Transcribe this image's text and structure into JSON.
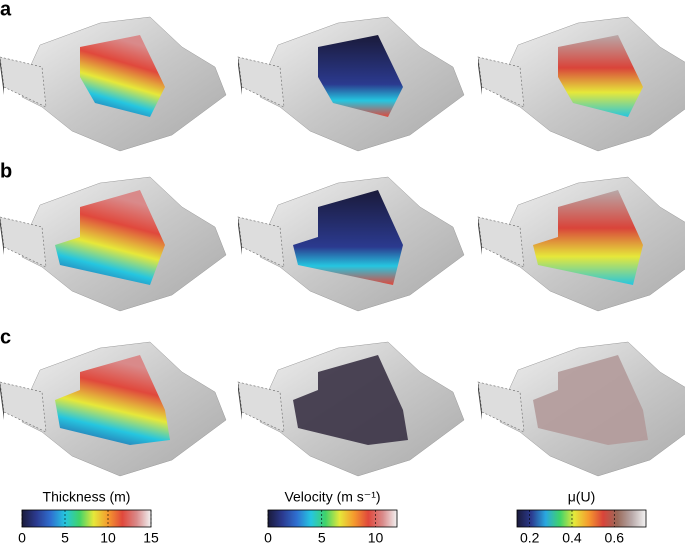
{
  "panels": [
    "a",
    "b",
    "c"
  ],
  "colorbars": [
    {
      "title": "Thickness (m)",
      "lim": [
        0,
        15
      ],
      "ticks": [
        0,
        5,
        10,
        15
      ],
      "colors": [
        "#1a1a3a",
        "#2b3a8f",
        "#2f6fd0",
        "#25c6e0",
        "#3fd36a",
        "#e6e83a",
        "#f59a2e",
        "#e0483c",
        "#d98a8a",
        "#f2f2f2"
      ]
    },
    {
      "title": "Velocity (m s⁻¹)",
      "lim": [
        0,
        12
      ],
      "ticks": [
        0,
        5,
        10
      ],
      "colors": [
        "#1a1a3a",
        "#2b3a8f",
        "#2f6fd0",
        "#25c6e0",
        "#3fd36a",
        "#e6e83a",
        "#f59a2e",
        "#e0483c",
        "#d98a8a",
        "#f2f2f2"
      ]
    },
    {
      "title": "μ(U)",
      "lim": [
        0.14,
        0.75
      ],
      "ticks": [
        0.2,
        0.4,
        0.6
      ],
      "colors": [
        "#1a1a3a",
        "#2b3a8f",
        "#2aa8e0",
        "#3fd36a",
        "#e6e83a",
        "#f59a2e",
        "#d9443a",
        "#9a6a5a",
        "#b8a8a8",
        "#f4f4f4"
      ]
    }
  ]
}
